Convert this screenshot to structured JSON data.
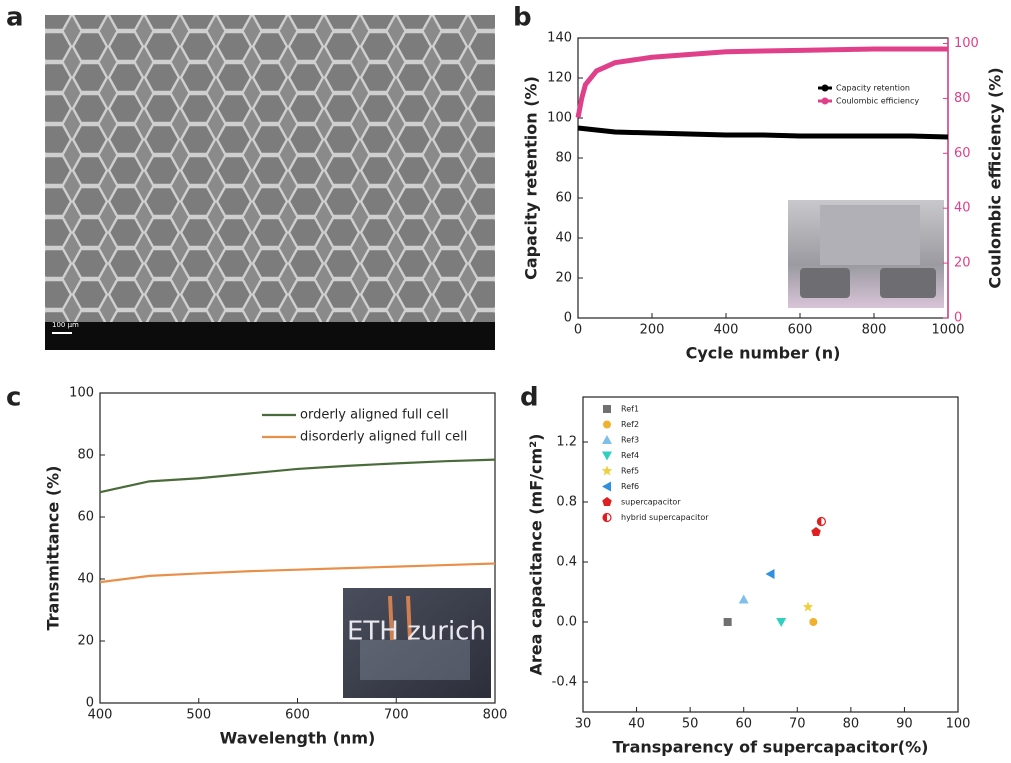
{
  "panel_labels": [
    "a",
    "b",
    "c",
    "d"
  ],
  "image_a": {
    "scale_bar": "100 µm"
  },
  "inset_c_text": "ETH zurich",
  "chart_data": [
    {
      "type": "line",
      "xlabel": "Cycle number (n)",
      "ylabel": "Capacity retention (%)",
      "y2label": "Coulombic efficiency (%)",
      "xlim": [
        0,
        1000
      ],
      "xticks": [
        0,
        200,
        400,
        600,
        800,
        1000
      ],
      "ylim": [
        0,
        140
      ],
      "yticks": [
        0,
        20,
        40,
        60,
        80,
        100,
        120,
        140
      ],
      "y2lim": [
        0,
        102
      ],
      "y2ticks": [
        0,
        20,
        40,
        60,
        80,
        100
      ],
      "y2color": "#e0408a",
      "legend": "upper right",
      "series": [
        {
          "name": "Capacity retention",
          "color": "#000000",
          "x": [
            0,
            50,
            100,
            200,
            300,
            400,
            500,
            600,
            700,
            800,
            900,
            1000
          ],
          "values": [
            95,
            94,
            93,
            92.5,
            92,
            91.5,
            91.5,
            91,
            91,
            91,
            91,
            90.5
          ]
        },
        {
          "name": "Coulombic efficiency",
          "color": "#e0408a",
          "axis": "y2",
          "x": [
            0,
            10,
            20,
            50,
            100,
            200,
            300,
            400,
            600,
            800,
            1000
          ],
          "values": [
            73,
            80,
            85,
            90,
            93,
            95,
            96,
            97,
            97.5,
            98,
            98
          ]
        }
      ]
    },
    {
      "type": "line",
      "xlabel": "Wavelength (nm)",
      "ylabel": "Transmittance (%)",
      "xlim": [
        400,
        800
      ],
      "xticks": [
        400,
        500,
        600,
        700,
        800
      ],
      "ylim": [
        0,
        100
      ],
      "yticks": [
        0,
        20,
        40,
        60,
        80,
        100
      ],
      "legend": "upper right",
      "series": [
        {
          "name": "orderly aligned full cell",
          "color": "#4a6b3a",
          "x": [
            400,
            450,
            500,
            550,
            600,
            650,
            700,
            750,
            800
          ],
          "values": [
            68,
            71.5,
            72.5,
            74,
            75.5,
            76.5,
            77.3,
            78,
            78.5
          ]
        },
        {
          "name": "disorderly aligned full cell",
          "color": "#e8904a",
          "x": [
            400,
            450,
            500,
            550,
            600,
            650,
            700,
            750,
            800
          ],
          "values": [
            39,
            41,
            41.8,
            42.5,
            43,
            43.5,
            44,
            44.5,
            45
          ]
        }
      ]
    },
    {
      "type": "scatter",
      "xlabel": "Transparency of supercapacitor(%)",
      "ylabel": "Area capacitance (mF/cm²)",
      "xlim": [
        30,
        100
      ],
      "xticks": [
        30,
        40,
        50,
        60,
        70,
        80,
        90,
        100
      ],
      "ylim": [
        -0.6,
        1.5
      ],
      "yticks": [
        -0.4,
        {
          "value": 0,
          "label": "0.0"
        },
        0.4,
        0.8,
        1.2
      ],
      "legend": "upper left",
      "series": [
        {
          "name": "Ref1",
          "color": "#707070",
          "marker": "square",
          "x": [
            57
          ],
          "values": [
            0
          ]
        },
        {
          "name": "Ref2",
          "color": "#f0b030",
          "marker": "circle",
          "x": [
            73
          ],
          "values": [
            0
          ]
        },
        {
          "name": "Ref3",
          "color": "#80c0e8",
          "marker": "triangle-up",
          "x": [
            60
          ],
          "values": [
            0.15
          ]
        },
        {
          "name": "Ref4",
          "color": "#30d0c0",
          "marker": "triangle-down",
          "x": [
            67
          ],
          "values": [
            0
          ]
        },
        {
          "name": "Ref5",
          "color": "#f0d040",
          "marker": "star",
          "x": [
            72
          ],
          "values": [
            0.1
          ]
        },
        {
          "name": "Ref6",
          "color": "#3090e0",
          "marker": "triangle-left",
          "x": [
            65
          ],
          "values": [
            0.32
          ]
        },
        {
          "name": "supercapacitor",
          "color": "#e02020",
          "marker": "pentagon",
          "x": [
            73.5
          ],
          "values": [
            0.6
          ]
        },
        {
          "name": "hybrid supercapacitor",
          "color": "#e02020",
          "marker": "half-circle",
          "x": [
            74.5
          ],
          "values": [
            0.67
          ]
        }
      ]
    }
  ]
}
